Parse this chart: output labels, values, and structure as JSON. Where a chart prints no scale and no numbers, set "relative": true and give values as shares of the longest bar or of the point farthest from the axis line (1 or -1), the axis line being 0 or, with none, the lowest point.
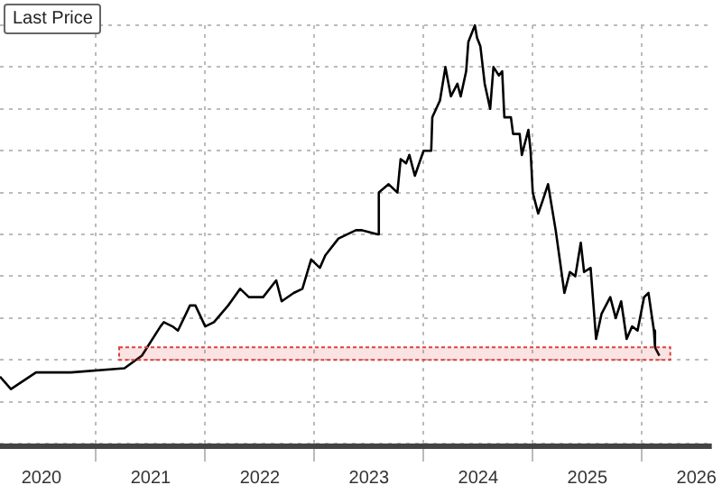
{
  "chart_data": {
    "type": "line",
    "title": "Last Price",
    "relative": true,
    "grid": true,
    "legend": false,
    "marker": "none",
    "line_style": "solid",
    "xlim": [
      2020.12,
      2026.64
    ],
    "xticks": [
      {
        "value": 2021,
        "label": null
      },
      {
        "value": 2022,
        "label": null
      },
      {
        "value": 2023,
        "label": null
      },
      {
        "value": 2024,
        "label": null
      },
      {
        "value": 2025,
        "label": null
      },
      {
        "value": 2026,
        "label": null
      },
      {
        "value": 2020.5,
        "label": "2020"
      },
      {
        "value": 2021.5,
        "label": "2021"
      },
      {
        "value": 2022.5,
        "label": "2022"
      },
      {
        "value": 2023.5,
        "label": "2023"
      },
      {
        "value": 2024.5,
        "label": "2024"
      },
      {
        "value": 2025.5,
        "label": "2025"
      },
      {
        "value": 2026.5,
        "label": "2026"
      }
    ],
    "bands": [
      {
        "axis": "y",
        "from": 0.2,
        "to": 0.23,
        "color": "#e04040"
      }
    ],
    "series": [
      {
        "color": "#000000",
        "x": [
          2020.12,
          2020.22,
          2020.45,
          2020.77,
          2021.26,
          2021.42,
          2021.59,
          2021.62,
          2021.7,
          2021.75,
          2021.86,
          2021.91,
          2022.0,
          2022.08,
          2022.21,
          2022.32,
          2022.4,
          2022.53,
          2022.65,
          2022.7,
          2022.81,
          2022.89,
          2022.97,
          2023.05,
          2023.1,
          2023.22,
          2023.38,
          2023.43,
          2023.58,
          2023.59,
          2023.68,
          2023.76,
          2023.79,
          2023.84,
          2023.87,
          2023.92,
          2024.0,
          2024.07,
          2024.08,
          2024.15,
          2024.2,
          2024.25,
          2024.31,
          2024.34,
          2024.39,
          2024.41,
          2024.47,
          2024.49,
          2024.52,
          2024.56,
          2024.61,
          2024.64,
          2024.69,
          2024.72,
          2024.74,
          2024.8,
          2024.82,
          2024.88,
          2024.9,
          2024.96,
          2024.98,
          2025.0,
          2025.05,
          2025.09,
          2025.14,
          2025.21,
          2025.29,
          2025.34,
          2025.39,
          2025.44,
          2025.47,
          2025.53,
          2025.58,
          2025.63,
          2025.71,
          2025.76,
          2025.81,
          2025.86,
          2025.91,
          2025.96,
          2026.02,
          2026.06,
          2026.11,
          2026.12,
          2026.16
        ],
        "values": [
          0.16,
          0.13,
          0.17,
          0.17,
          0.18,
          0.21,
          0.28,
          0.29,
          0.28,
          0.27,
          0.33,
          0.33,
          0.28,
          0.29,
          0.33,
          0.37,
          0.35,
          0.35,
          0.39,
          0.34,
          0.36,
          0.37,
          0.44,
          0.42,
          0.45,
          0.49,
          0.51,
          0.51,
          0.5,
          0.6,
          0.62,
          0.6,
          0.68,
          0.67,
          0.69,
          0.64,
          0.7,
          0.7,
          0.78,
          0.82,
          0.9,
          0.83,
          0.86,
          0.83,
          0.89,
          0.96,
          1,
          0.97,
          0.95,
          0.86,
          0.8,
          0.9,
          0.88,
          0.89,
          0.78,
          0.78,
          0.74,
          0.74,
          0.69,
          0.75,
          0.7,
          0.6,
          0.55,
          0.58,
          0.62,
          0.51,
          0.36,
          0.41,
          0.4,
          0.48,
          0.41,
          0.42,
          0.25,
          0.31,
          0.35,
          0.3,
          0.34,
          0.25,
          0.28,
          0.27,
          0.35,
          0.36,
          0.27,
          0.23,
          0.21
        ]
      }
    ]
  }
}
